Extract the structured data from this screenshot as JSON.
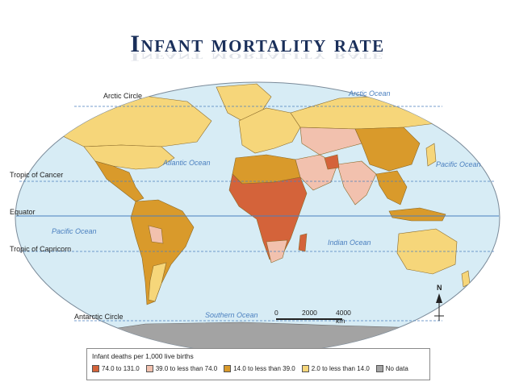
{
  "title": "Infant mortality rate",
  "labels": {
    "arctic_circle": "Arctic Circle",
    "tropic_cancer": "Tropic of Cancer",
    "equator": "Equator",
    "tropic_capricorn": "Tropic of Capricorn",
    "antarctic_circle": "Antarctic Circle"
  },
  "oceans": {
    "arctic": "Arctic Ocean",
    "atlantic": "Atlantic Ocean",
    "pacific_ne": "Pacific Ocean",
    "pacific_sw": "Pacific Ocean",
    "indian": "Indian Ocean",
    "southern": "Southern Ocean"
  },
  "scale_bar": {
    "zero": "0",
    "mid": "2000",
    "end": "4000 km"
  },
  "compass": {
    "north": "N"
  },
  "legend": {
    "title": "Infant deaths per 1,000 live births",
    "items": [
      {
        "label": "74.0 to 131.0",
        "color": "#d4633a"
      },
      {
        "label": "39.0 to less than 74.0",
        "color": "#f2c1ae"
      },
      {
        "label": "14.0 to less than 39.0",
        "color": "#d99a2b"
      },
      {
        "label": "2.0 to less than 14.0",
        "color": "#f6d67a"
      },
      {
        "label": "No data",
        "color": "#a3a3a3"
      }
    ]
  },
  "colors": {
    "ocean": "#d7ecf5",
    "antarctica": "#a3a3a3",
    "high": "#d4633a",
    "mid_high": "#f2c1ae",
    "mid": "#d99a2b",
    "low": "#f6d67a"
  }
}
